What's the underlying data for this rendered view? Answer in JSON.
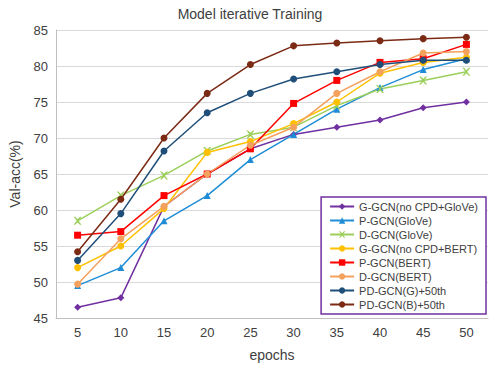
{
  "chart_data": {
    "type": "line",
    "title": "Model iterative Training",
    "x_label": "epochs",
    "y_label": "Val-acc(%)",
    "categories": [
      "5",
      "10",
      "15",
      "20",
      "25",
      "30",
      "35",
      "40",
      "45",
      "50"
    ],
    "ylim": [
      45,
      85
    ],
    "yticks": [
      45,
      50,
      55,
      60,
      65,
      70,
      75,
      80,
      85
    ],
    "grid": true,
    "legend": "lower right",
    "series": [
      {
        "name": "G-GCN(no CPD+GloVe)",
        "color": "#7030a0",
        "marker": "diamond",
        "values": [
          46.5,
          47.8,
          60.5,
          65,
          68.5,
          70.5,
          71.5,
          72.5,
          74.2,
          75
        ]
      },
      {
        "name": "P-GCN(GloVe)",
        "color": "#1f8dd6",
        "marker": "triangle",
        "values": [
          49.5,
          52,
          58.5,
          62,
          67,
          70.5,
          74,
          77,
          79.5,
          81
        ]
      },
      {
        "name": "D-GCN(GloVe)",
        "color": "#9bcf5a",
        "marker": "x",
        "values": [
          58.5,
          62,
          64.8,
          68.2,
          70.5,
          71.5,
          74.5,
          76.8,
          78,
          79.2
        ]
      },
      {
        "name": "G-GCN(no CPD+BERT)",
        "color": "#ffc000",
        "marker": "circle",
        "values": [
          52,
          55,
          60.2,
          68,
          69.5,
          72,
          75,
          79,
          80.5,
          81.2
        ]
      },
      {
        "name": "P-GCN(BERT)",
        "color": "#ff0000",
        "marker": "square",
        "values": [
          56.5,
          57,
          62,
          65,
          68.5,
          74.8,
          78,
          80.5,
          81,
          83
        ]
      },
      {
        "name": "D-GCN(BERT)",
        "color": "#f4a15d",
        "marker": "circle",
        "values": [
          49.7,
          56,
          60.5,
          65,
          69,
          71.5,
          76.2,
          79.2,
          81.8,
          82
        ]
      },
      {
        "name": "PD-GCN(G)+50th",
        "color": "#1f4e79",
        "marker": "circle",
        "values": [
          53,
          59.5,
          68.2,
          73.5,
          76.2,
          78.2,
          79.2,
          80.2,
          80.8,
          80.8
        ]
      },
      {
        "name": "PD-GCN(B)+50th",
        "color": "#7b2a14",
        "marker": "circle",
        "values": [
          54.2,
          61.5,
          70,
          76.2,
          80.2,
          82.8,
          83.2,
          83.5,
          83.8,
          84
        ]
      }
    ]
  }
}
